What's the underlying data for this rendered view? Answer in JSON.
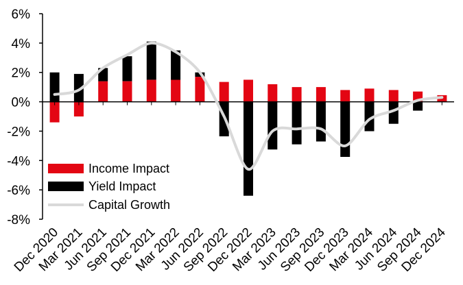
{
  "chart_data": {
    "type": "bar",
    "title": "",
    "xlabel": "",
    "ylabel": "",
    "ylim": [
      -8,
      6
    ],
    "yticks": [
      6,
      4,
      2,
      0,
      -2,
      -4,
      -6,
      -8
    ],
    "ytick_labels": [
      "6%",
      "4%",
      "2%",
      "0%",
      "-2%",
      "-4%",
      "-6%",
      "-8%"
    ],
    "categories": [
      "Dec 2020",
      "Mar 2021",
      "Jun 2021",
      "Sep 2021",
      "Dec 2021",
      "Mar 2022",
      "Jun 2022",
      "Sep 2022",
      "Dec 2022",
      "Mar 2023",
      "Jun 2023",
      "Sep 2023",
      "Dec 2023",
      "Mar 2024",
      "Jun 2024",
      "Sep 2024",
      "Dec 2024"
    ],
    "series": [
      {
        "name": "Income Impact",
        "kind": "bar",
        "color": "#e30613",
        "values": [
          -1.4,
          -1.0,
          1.4,
          1.4,
          1.5,
          1.5,
          1.7,
          1.35,
          1.5,
          1.2,
          1.0,
          1.0,
          0.8,
          0.9,
          0.8,
          0.7,
          0.45
        ]
      },
      {
        "name": "Yield Impact",
        "kind": "bar",
        "color": "#000000",
        "values": [
          2.0,
          1.9,
          0.9,
          1.7,
          2.6,
          2.0,
          0.3,
          -2.35,
          -6.4,
          -3.25,
          -2.9,
          -2.7,
          -3.75,
          -2.0,
          -1.5,
          -0.6,
          0.0
        ]
      },
      {
        "name": "Capital Growth",
        "kind": "line",
        "color": "#d9d9d9",
        "values": [
          0.5,
          0.8,
          2.3,
          3.2,
          4.0,
          3.4,
          2.0,
          -1.0,
          -4.6,
          -2.0,
          -1.85,
          -1.85,
          -3.0,
          -1.2,
          -0.6,
          0.1,
          0.3
        ]
      }
    ],
    "legend_position": "lower-left"
  }
}
